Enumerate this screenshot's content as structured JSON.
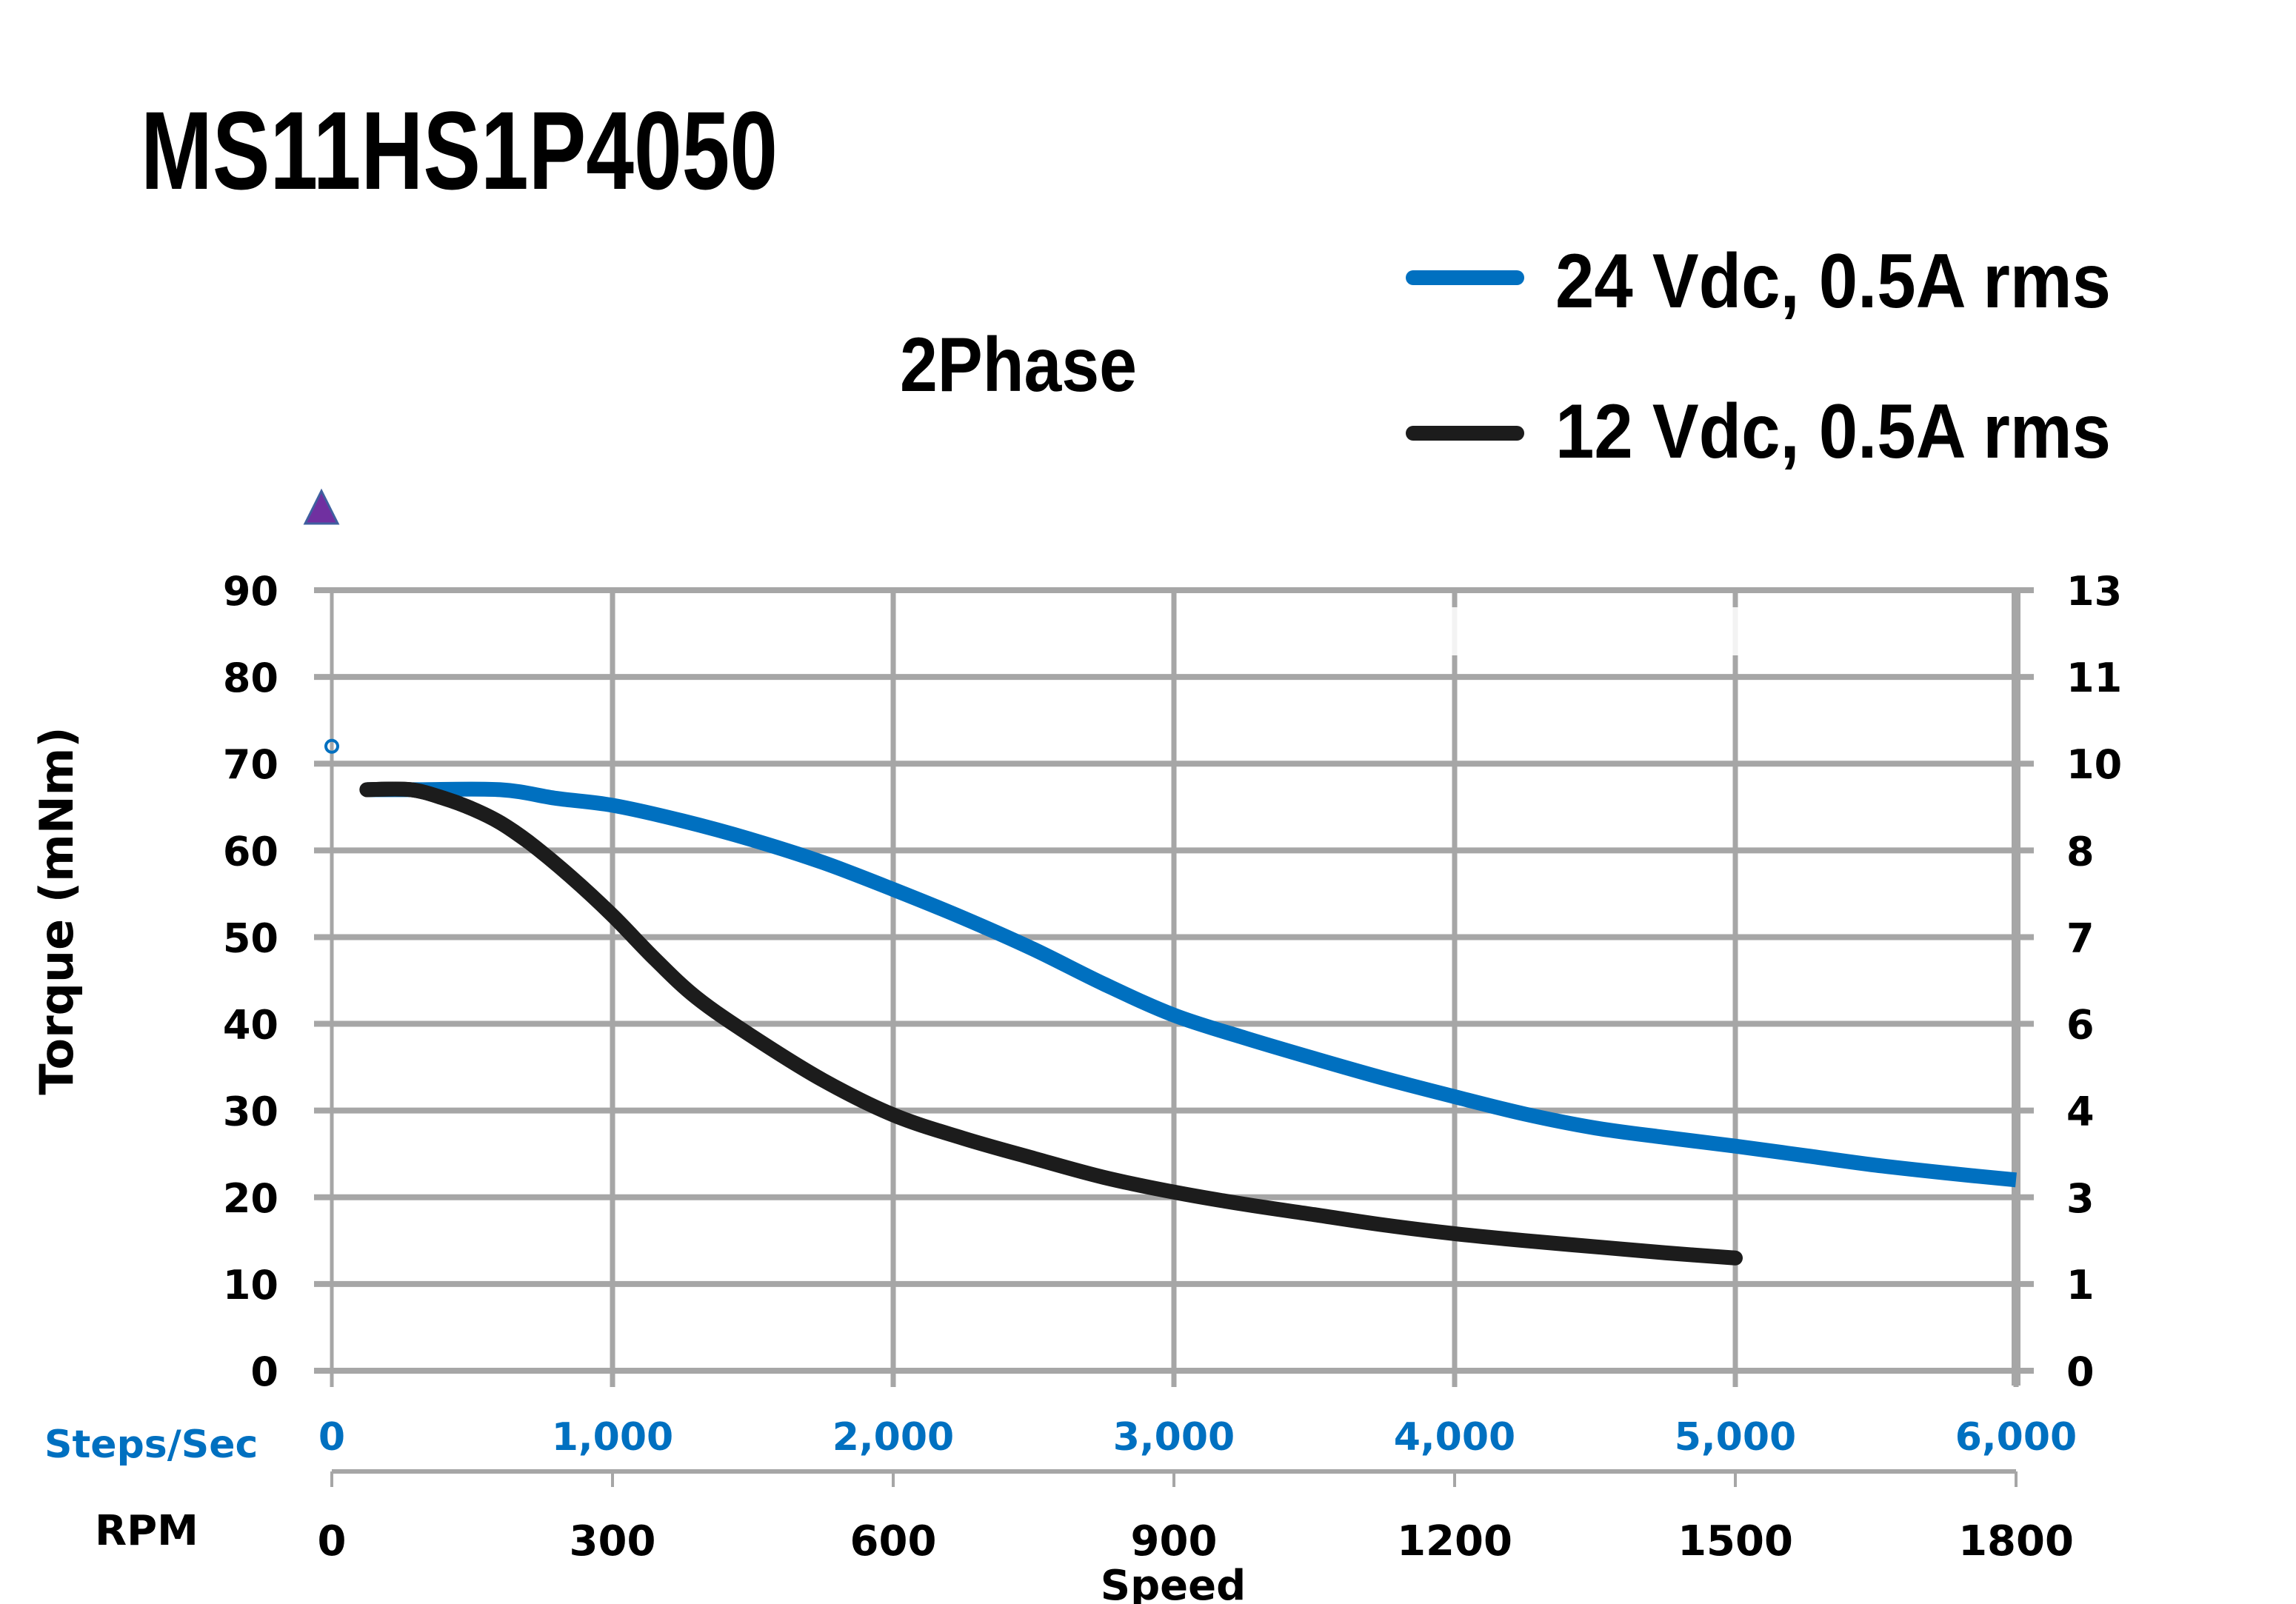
{
  "chart_data": {
    "type": "line",
    "title": "MS11HS1P4050",
    "subtitle": "2Phase",
    "ylabel": "Torque (mNm)",
    "xlabel": "Speed",
    "x_primary_label": "Steps/Sec",
    "x_secondary_label": "RPM",
    "ylim": [
      0,
      90
    ],
    "xlim": [
      0,
      6000
    ],
    "grid": true,
    "legend_position": "top-right",
    "y_ticks": [
      "0",
      "10",
      "20",
      "30",
      "40",
      "50",
      "60",
      "70",
      "80",
      "90"
    ],
    "y_right_ticks": [
      "0",
      "1",
      "3",
      "4",
      "6",
      "7",
      "8",
      "10",
      "11",
      "13"
    ],
    "x_ticks_steps": [
      "0",
      "1,000",
      "2,000",
      "3,000",
      "4,000",
      "5,000",
      "6,000"
    ],
    "x_ticks_rpm": [
      "0",
      "300",
      "600",
      "900",
      "1200",
      "1500",
      "1800"
    ],
    "series": [
      {
        "name": "24 Vdc, 0.5A rms",
        "color": "#0070C0",
        "x": [
          125,
          300,
          600,
          800,
          1000,
          1250,
          1500,
          1750,
          2000,
          2250,
          2500,
          2750,
          3000,
          3250,
          3500,
          3750,
          4000,
          4250,
          4500,
          4750,
          5000,
          5250,
          5500,
          5750,
          6000
        ],
        "y": [
          67,
          67,
          67,
          66,
          65.2,
          63.4,
          61.2,
          58.6,
          55.5,
          52.2,
          48.6,
          44.6,
          41,
          38.4,
          36,
          33.7,
          31.6,
          29.6,
          28,
          26.9,
          25.9,
          24.8,
          23.7,
          22.8,
          22
        ]
      },
      {
        "name": "12 Vdc, 0.5A rms",
        "color": "#1C1C1C",
        "x": [
          125,
          280,
          400,
          500,
          600,
          700,
          850,
          1000,
          1150,
          1300,
          1500,
          1750,
          2000,
          2250,
          2500,
          2750,
          3000,
          3250,
          3500,
          3750,
          4000,
          4250,
          4500,
          4750,
          5000
        ],
        "y": [
          67,
          67,
          66,
          64.8,
          63.2,
          61,
          57,
          52.5,
          47.5,
          43,
          38.5,
          33.5,
          29.5,
          26.8,
          24.5,
          22.3,
          20.6,
          19.2,
          18,
          16.8,
          15.8,
          15,
          14.3,
          13.6,
          13
        ]
      }
    ],
    "markers": [
      {
        "name": "open-circle-marker",
        "x": 0,
        "y": 72,
        "color": "#0070C0"
      },
      {
        "name": "triangle-marker",
        "x": -30,
        "y": 99,
        "color": "#7030A0"
      }
    ]
  }
}
